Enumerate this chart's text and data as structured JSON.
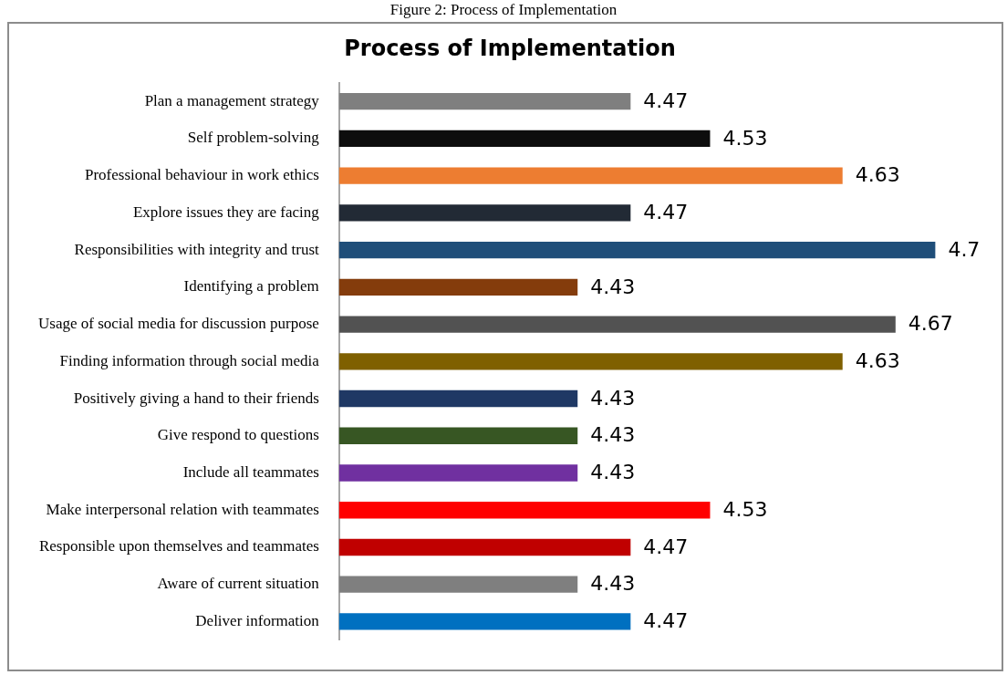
{
  "chart_data": {
    "type": "bar",
    "orientation": "horizontal",
    "title": "Process of Implementation",
    "annotations": [
      "Figure 2: Process of Implementation"
    ],
    "categories": [
      "Plan a management strategy",
      "Self problem-solving",
      "Professional behaviour in work ethics",
      "Explore issues they are facing",
      "Responsibilities with integrity and trust",
      "Identifying a problem",
      "Usage of social media for discussion purpose",
      "Finding information through social media",
      "Positively giving a hand to their friends",
      "Give respond to questions",
      "Include all teammates",
      "Make interpersonal relation with teammates",
      "Responsible upon themselves and teammates",
      "Aware of current situation",
      "Deliver information"
    ],
    "values": [
      4.47,
      4.53,
      4.63,
      4.47,
      4.7,
      4.43,
      4.67,
      4.63,
      4.43,
      4.43,
      4.43,
      4.53,
      4.47,
      4.43,
      4.47
    ],
    "colors": [
      "#7f7f7f",
      "#0d0d0d",
      "#ed7d31",
      "#222a35",
      "#1f4e79",
      "#843c0c",
      "#525252",
      "#7f6000",
      "#1f3864",
      "#375623",
      "#7030a0",
      "#ff0000",
      "#c00000",
      "#7f7f7f",
      "#0070c0"
    ],
    "xlim": [
      4.25,
      4.75
    ],
    "tick_labels": "y",
    "legend": false,
    "data_labels": true
  }
}
